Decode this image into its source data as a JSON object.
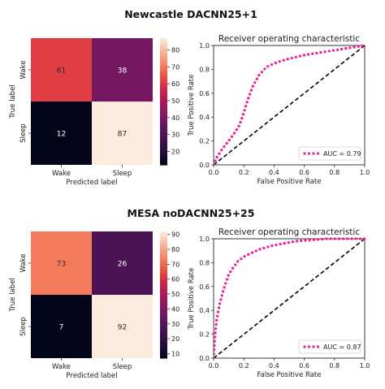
{
  "chart_data": [
    {
      "type": "heatmap",
      "suptitle": "Newcastle  DACNN25+1",
      "xlabel": "Predicted label",
      "ylabel": "True label",
      "row_labels": [
        "Wake",
        "Sleep"
      ],
      "col_labels": [
        "Wake",
        "Sleep"
      ],
      "values": [
        [
          61,
          38
        ],
        [
          12,
          87
        ]
      ],
      "colorbar": {
        "ticks": [
          20,
          30,
          40,
          50,
          60,
          70,
          80
        ],
        "range": [
          12,
          87
        ]
      }
    },
    {
      "type": "line",
      "title": "Receiver operating characteristic",
      "xlabel": "False Positive Rate",
      "ylabel": "True Positive Rate",
      "xlim": [
        0,
        1.0
      ],
      "ylim": [
        0,
        1.0
      ],
      "xticks": [
        "0.0",
        "0.2",
        "0.4",
        "0.6",
        "0.8",
        "1.0"
      ],
      "yticks": [
        "0.0",
        "0.2",
        "0.4",
        "0.6",
        "0.8",
        "1.0"
      ],
      "legend": "bottom-right",
      "series": [
        {
          "name": "AUC = 0.79",
          "color": "#ff1493",
          "style": "dotted",
          "x": [
            0,
            0.02,
            0.05,
            0.08,
            0.11,
            0.14,
            0.17,
            0.19,
            0.21,
            0.23,
            0.26,
            0.3,
            0.35,
            0.42,
            0.5,
            0.6,
            0.7,
            0.8,
            0.9,
            1.0
          ],
          "y": [
            0,
            0.06,
            0.12,
            0.17,
            0.22,
            0.27,
            0.33,
            0.4,
            0.48,
            0.56,
            0.66,
            0.75,
            0.82,
            0.86,
            0.89,
            0.92,
            0.94,
            0.96,
            0.98,
            1.0
          ]
        },
        {
          "name": "",
          "color": "#000000",
          "style": "dashed",
          "x": [
            0,
            1
          ],
          "y": [
            0,
            1
          ]
        }
      ]
    },
    {
      "type": "heatmap",
      "suptitle": "MESA noDACNN25+25",
      "xlabel": "Predicted label",
      "ylabel": "True label",
      "row_labels": [
        "Wake",
        "Sleep"
      ],
      "col_labels": [
        "Wake",
        "Sleep"
      ],
      "values": [
        [
          73,
          26
        ],
        [
          7,
          92
        ]
      ],
      "colorbar": {
        "ticks": [
          10,
          20,
          30,
          40,
          50,
          60,
          70,
          80,
          90
        ],
        "range": [
          7,
          92
        ]
      }
    },
    {
      "type": "line",
      "title": "Receiver operating characteristic",
      "xlabel": "False Positive Rate",
      "ylabel": "True Positive Rate",
      "xlim": [
        0,
        1.0
      ],
      "ylim": [
        0,
        1.0
      ],
      "xticks": [
        "0.0",
        "0.2",
        "0.4",
        "0.6",
        "0.8",
        "1.0"
      ],
      "yticks": [
        "0.0",
        "0.2",
        "0.4",
        "0.6",
        "0.8",
        "1.0"
      ],
      "legend": "bottom-right",
      "series": [
        {
          "name": "AUC = 0.87",
          "color": "#ff1493",
          "style": "dotted",
          "x": [
            0,
            0.01,
            0.02,
            0.04,
            0.06,
            0.08,
            0.1,
            0.13,
            0.16,
            0.2,
            0.25,
            0.3,
            0.38,
            0.46,
            0.55,
            0.65,
            0.75,
            0.85,
            1.0
          ],
          "y": [
            0,
            0.2,
            0.32,
            0.45,
            0.55,
            0.63,
            0.7,
            0.76,
            0.81,
            0.85,
            0.88,
            0.91,
            0.94,
            0.96,
            0.98,
            0.99,
            1.0,
            1.0,
            1.0
          ]
        },
        {
          "name": "",
          "color": "#000000",
          "style": "dashed",
          "x": [
            0,
            1
          ],
          "y": [
            0,
            1
          ]
        }
      ]
    }
  ]
}
